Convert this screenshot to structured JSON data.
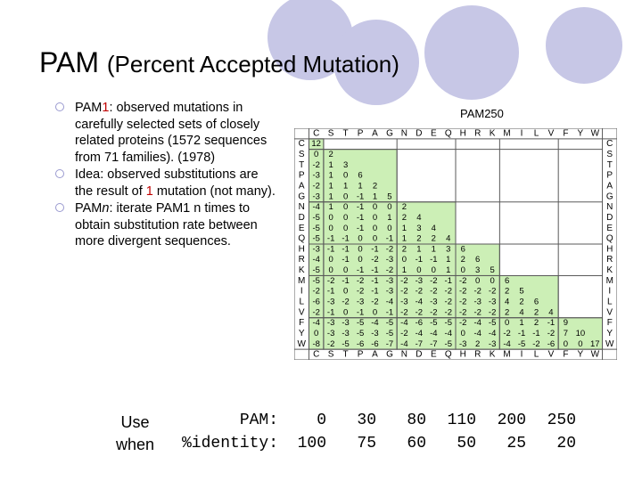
{
  "slide": {
    "title_main": "PAM",
    "title_paren": "(Percent Accepted Mutation)",
    "bullets": [
      {
        "prefix": "PAM",
        "highlight": "1",
        "italic": "",
        "suffix": ": observed mutations in carefully selected sets of closely related proteins (1572 sequences from 71 families). (1978)"
      },
      {
        "prefix": "Idea: observed substitutions are the result of ",
        "highlight": "1",
        "italic": "",
        "suffix": " mutation (not many)."
      },
      {
        "prefix": "PAM",
        "highlight": "",
        "italic": "n",
        "suffix": ": iterate PAM1 n times to obtain substitution rate between more divergent sequences."
      }
    ],
    "matrix_label": "PAM250",
    "use_when": [
      "Use",
      "when"
    ],
    "pam_row_label": "PAM:",
    "identity_row_label": "%identity:",
    "pam_values": [
      "0",
      "30",
      "80",
      "110",
      "200",
      "250"
    ],
    "identity_values": [
      "100",
      "75",
      "60",
      "50",
      "25",
      "20"
    ]
  },
  "matrix": {
    "header": [
      "C",
      "S",
      "T",
      "P",
      "A",
      "G",
      "N",
      "D",
      "E",
      "Q",
      "H",
      "R",
      "K",
      "M",
      "I",
      "L",
      "V",
      "F",
      "Y",
      "W"
    ],
    "group_starts": [
      0,
      1,
      6,
      10,
      13,
      17
    ],
    "rows": [
      [
        "12"
      ],
      [
        "0",
        "2"
      ],
      [
        "-2",
        "1",
        "3"
      ],
      [
        "-3",
        "1",
        "0",
        "6"
      ],
      [
        "-2",
        "1",
        "1",
        "1",
        "2"
      ],
      [
        "-3",
        "1",
        "0",
        "-1",
        "1",
        "5"
      ],
      [
        "-4",
        "1",
        "0",
        "-1",
        "0",
        "0",
        "2"
      ],
      [
        "-5",
        "0",
        "0",
        "-1",
        "0",
        "1",
        "2",
        "4"
      ],
      [
        "-5",
        "0",
        "0",
        "-1",
        "0",
        "0",
        "1",
        "3",
        "4"
      ],
      [
        "-5",
        "-1",
        "-1",
        "0",
        "0",
        "-1",
        "1",
        "2",
        "2",
        "4"
      ],
      [
        "-3",
        "-1",
        "-1",
        "0",
        "-1",
        "-2",
        "2",
        "1",
        "1",
        "3",
        "6"
      ],
      [
        "-4",
        "0",
        "-1",
        "0",
        "-2",
        "-3",
        "0",
        "-1",
        "-1",
        "1",
        "2",
        "6"
      ],
      [
        "-5",
        "0",
        "0",
        "-1",
        "-1",
        "-2",
        "1",
        "0",
        "0",
        "1",
        "0",
        "3",
        "5"
      ],
      [
        "-5",
        "-2",
        "-1",
        "-2",
        "-1",
        "-3",
        "-2",
        "-3",
        "-2",
        "-1",
        "-2",
        "0",
        "0",
        "6"
      ],
      [
        "-2",
        "-1",
        "0",
        "-2",
        "-1",
        "-3",
        "-2",
        "-2",
        "-2",
        "-2",
        "-2",
        "-2",
        "-2",
        "2",
        "5"
      ],
      [
        "-6",
        "-3",
        "-2",
        "-3",
        "-2",
        "-4",
        "-3",
        "-4",
        "-3",
        "-2",
        "-2",
        "-3",
        "-3",
        "4",
        "2",
        "6"
      ],
      [
        "-2",
        "-1",
        "0",
        "-1",
        "0",
        "-1",
        "-2",
        "-2",
        "-2",
        "-2",
        "-2",
        "-2",
        "-2",
        "2",
        "4",
        "2",
        "4"
      ],
      [
        "-4",
        "-3",
        "-3",
        "-5",
        "-4",
        "-5",
        "-4",
        "-6",
        "-5",
        "-5",
        "-2",
        "-4",
        "-5",
        "0",
        "1",
        "2",
        "-1",
        "9"
      ],
      [
        "0",
        "-3",
        "-3",
        "-5",
        "-3",
        "-5",
        "-2",
        "-4",
        "-4",
        "-4",
        "0",
        "-4",
        "-4",
        "-2",
        "-1",
        "-1",
        "-2",
        "7",
        "10"
      ],
      [
        "-8",
        "-2",
        "-5",
        "-6",
        "-6",
        "-7",
        "-4",
        "-7",
        "-7",
        "-5",
        "-3",
        "2",
        "-3",
        "-4",
        "-5",
        "-2",
        "-6",
        "0",
        "0",
        "17"
      ]
    ]
  },
  "colors": {
    "deco": "#c7c7e6",
    "cell": "#ccefb6",
    "grid": "#5a5a5a",
    "highlight": "#c00000"
  }
}
